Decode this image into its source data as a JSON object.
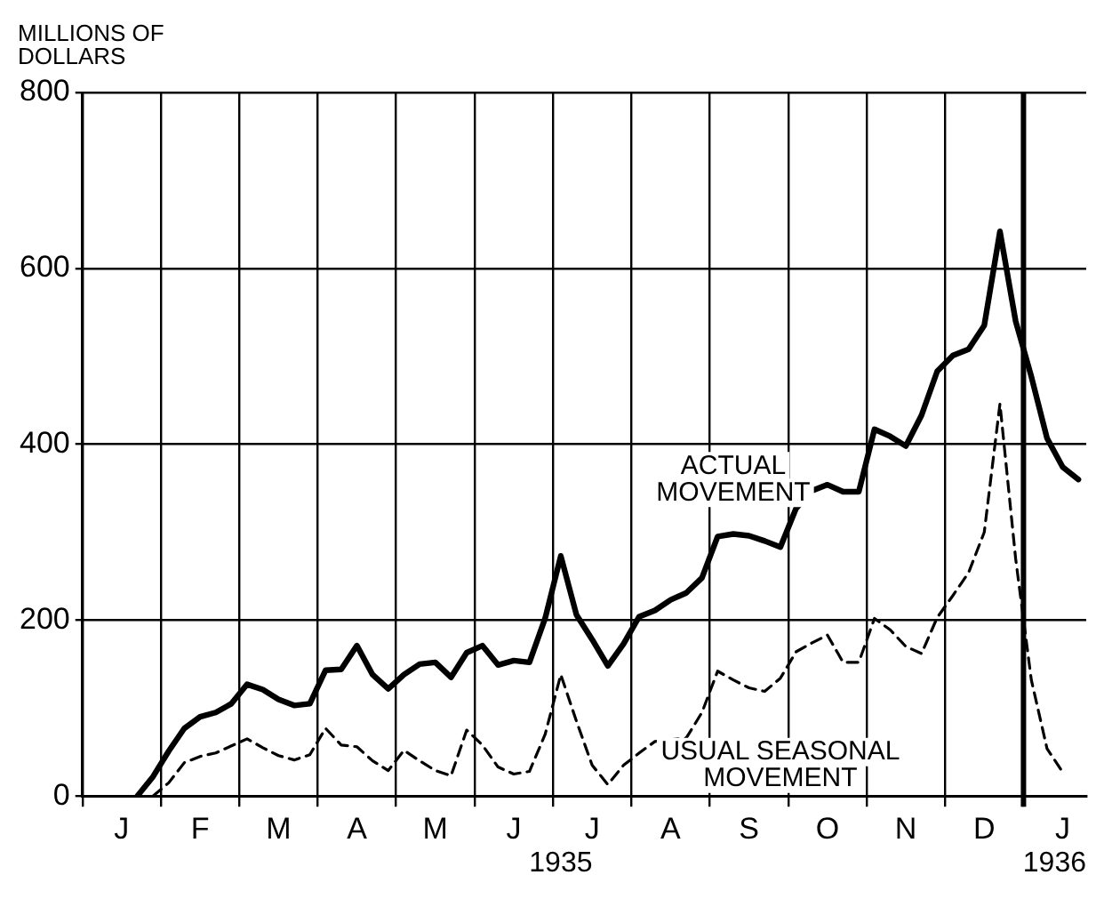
{
  "chart_data": {
    "type": "line",
    "ylabel": "MILLIONS OF DOLLARS",
    "annotations": [
      "1935",
      "1936"
    ],
    "categories": [
      null,
      null,
      "J",
      null,
      null,
      null,
      null,
      "F",
      null,
      null,
      null,
      null,
      "M",
      null,
      null,
      null,
      null,
      "A",
      null,
      null,
      null,
      null,
      "M",
      null,
      null,
      null,
      null,
      "J",
      null,
      null,
      null,
      null,
      "J",
      null,
      null,
      null,
      null,
      "A",
      null,
      null,
      null,
      null,
      "S",
      null,
      null,
      null,
      null,
      "O",
      null,
      null,
      null,
      null,
      "N",
      null,
      null,
      null,
      null,
      "D",
      null,
      null,
      null,
      null,
      "J",
      null
    ],
    "ylim": [
      0,
      800
    ],
    "yticks": [
      0,
      200,
      400,
      600,
      800
    ],
    "grid": true,
    "legend": false,
    "marker": "none",
    "series": [
      {
        "name": "ACTUAL MOVEMENT",
        "color": "#000000",
        "line_style": "solid",
        "values": [
          null,
          null,
          null,
          0,
          22,
          51,
          77,
          90,
          95,
          105,
          127,
          121,
          110,
          103,
          105,
          143,
          144,
          171,
          138,
          122,
          138,
          150,
          152,
          135,
          163,
          171,
          149,
          154,
          152,
          202,
          273,
          206,
          178,
          148,
          173,
          204,
          211,
          223,
          231,
          248,
          295,
          298,
          296,
          290,
          283,
          327,
          347,
          354,
          346,
          346,
          417,
          409,
          398,
          433,
          483,
          501,
          508,
          535,
          642,
          540,
          477,
          407,
          374,
          360
        ]
      },
      {
        "name": "USUAL SEASONAL MOVEMENT",
        "color": "#000000",
        "line_style": "dashed",
        "values": [
          null,
          null,
          null,
          null,
          0,
          15,
          38,
          45,
          49,
          57,
          65,
          55,
          46,
          41,
          47,
          77,
          58,
          56,
          40,
          29,
          52,
          40,
          29,
          23,
          75,
          58,
          33,
          25,
          28,
          70,
          138,
          85,
          35,
          13,
          35,
          49,
          62,
          64,
          66,
          95,
          142,
          132,
          123,
          119,
          134,
          164,
          174,
          183,
          152,
          152,
          202,
          189,
          170,
          162,
          203,
          228,
          254,
          300,
          446,
          270,
          132,
          54,
          27,
          null
        ]
      }
    ]
  }
}
